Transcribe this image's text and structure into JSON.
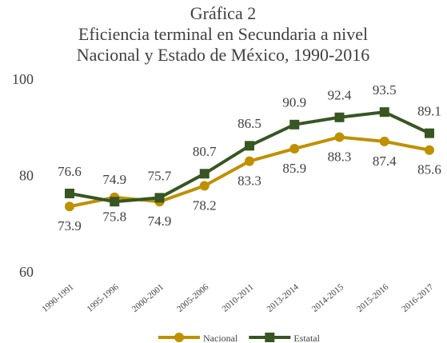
{
  "chart_data": {
    "type": "line",
    "title": [
      "Gráfica 2",
      "Eficiencia terminal en Secundaria a nivel",
      "Nacional y Estado de México, 1990-2016"
    ],
    "categories": [
      "1990-1991",
      "1995-1996",
      "2000-2001",
      "2005-2006",
      "2010-2011",
      "2013-2014",
      "2014-2015",
      "2015-2016",
      "2016-2017"
    ],
    "series": [
      {
        "name": "Nacional",
        "color": "#BF9000",
        "marker": "circle",
        "values": [
          73.9,
          75.8,
          74.9,
          78.2,
          83.3,
          85.9,
          88.3,
          87.4,
          85.6
        ]
      },
      {
        "name": "Estatal",
        "color": "#375623",
        "marker": "square",
        "values": [
          76.6,
          74.9,
          75.7,
          80.7,
          86.5,
          90.9,
          92.4,
          93.5,
          89.1
        ]
      }
    ],
    "ylim": [
      60,
      100
    ],
    "yticks": [
      60,
      80,
      100
    ],
    "grid": false,
    "legend": "bottom"
  }
}
